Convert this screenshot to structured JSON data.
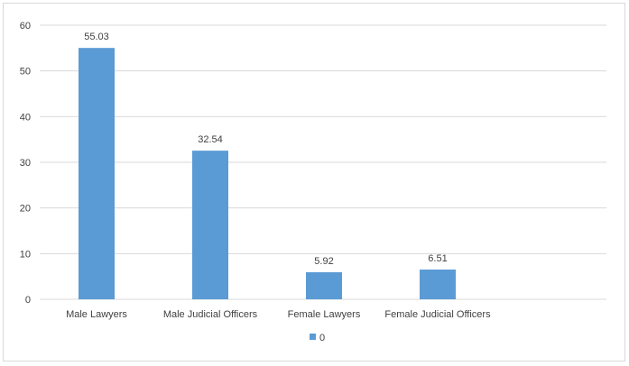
{
  "chart_data": {
    "type": "bar",
    "categories": [
      "Male Lawyers",
      "Male Judicial Officers",
      "Female Lawyers",
      "Female Judicial Officers"
    ],
    "series": [
      {
        "name": "0",
        "values": [
          55.03,
          32.54,
          5.92,
          6.51
        ]
      }
    ],
    "data_labels": [
      "55.03",
      "32.54",
      "5.92",
      "6.51"
    ],
    "y_ticks": [
      "0",
      "10",
      "20",
      "30",
      "40",
      "50",
      "60"
    ],
    "ylim": [
      0,
      60
    ],
    "grid": true,
    "legend": "bottom",
    "colors": {
      "bar": "#5b9bd5",
      "grid": "#d9d9d9",
      "text": "#404040"
    }
  }
}
